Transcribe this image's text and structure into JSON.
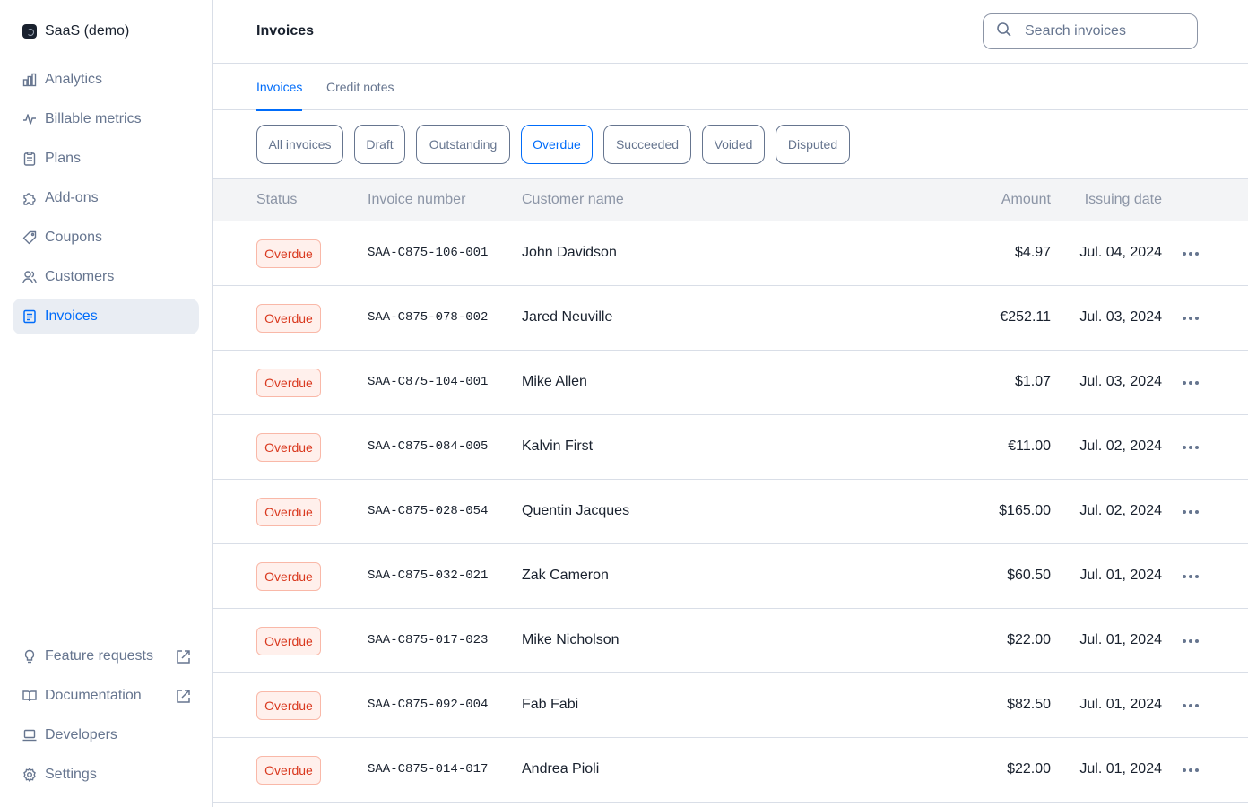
{
  "sidebar": {
    "org_name": "SaaS (demo)",
    "nav": [
      {
        "label": "Analytics",
        "icon": "chart-bar-icon"
      },
      {
        "label": "Billable metrics",
        "icon": "pulse-icon"
      },
      {
        "label": "Plans",
        "icon": "clipboard-icon"
      },
      {
        "label": "Add-ons",
        "icon": "puzzle-icon"
      },
      {
        "label": "Coupons",
        "icon": "tag-icon"
      },
      {
        "label": "Customers",
        "icon": "users-icon"
      },
      {
        "label": "Invoices",
        "icon": "document-icon",
        "active": true
      }
    ],
    "bottom": [
      {
        "label": "Feature requests",
        "icon": "lightbulb-icon",
        "external": true
      },
      {
        "label": "Documentation",
        "icon": "book-icon",
        "external": true
      },
      {
        "label": "Developers",
        "icon": "laptop-icon"
      },
      {
        "label": "Settings",
        "icon": "gear-icon"
      }
    ]
  },
  "header": {
    "title": "Invoices",
    "search_placeholder": "Search invoices"
  },
  "tabs": [
    {
      "label": "Invoices",
      "active": true
    },
    {
      "label": "Credit notes",
      "active": false
    }
  ],
  "filters": [
    {
      "label": "All invoices",
      "active": false
    },
    {
      "label": "Draft",
      "active": false
    },
    {
      "label": "Outstanding",
      "active": false
    },
    {
      "label": "Overdue",
      "active": true
    },
    {
      "label": "Succeeded",
      "active": false
    },
    {
      "label": "Voided",
      "active": false
    },
    {
      "label": "Disputed",
      "active": false
    }
  ],
  "table": {
    "columns": {
      "status": "Status",
      "invoice_number": "Invoice number",
      "customer_name": "Customer name",
      "amount": "Amount",
      "issuing_date": "Issuing date"
    },
    "rows": [
      {
        "status": "Overdue",
        "invoice_number": "SAA-C875-106-001",
        "customer": "John Davidson",
        "amount": "$4.97",
        "date": "Jul. 04, 2024"
      },
      {
        "status": "Overdue",
        "invoice_number": "SAA-C875-078-002",
        "customer": "Jared Neuville",
        "amount": "€252.11",
        "date": "Jul. 03, 2024"
      },
      {
        "status": "Overdue",
        "invoice_number": "SAA-C875-104-001",
        "customer": "Mike Allen",
        "amount": "$1.07",
        "date": "Jul. 03, 2024"
      },
      {
        "status": "Overdue",
        "invoice_number": "SAA-C875-084-005",
        "customer": "Kalvin First",
        "amount": "€11.00",
        "date": "Jul. 02, 2024"
      },
      {
        "status": "Overdue",
        "invoice_number": "SAA-C875-028-054",
        "customer": "Quentin Jacques",
        "amount": "$165.00",
        "date": "Jul. 02, 2024"
      },
      {
        "status": "Overdue",
        "invoice_number": "SAA-C875-032-021",
        "customer": "Zak Cameron",
        "amount": "$60.50",
        "date": "Jul. 01, 2024"
      },
      {
        "status": "Overdue",
        "invoice_number": "SAA-C875-017-023",
        "customer": "Mike Nicholson",
        "amount": "$22.00",
        "date": "Jul. 01, 2024"
      },
      {
        "status": "Overdue",
        "invoice_number": "SAA-C875-092-004",
        "customer": "Fab Fabi",
        "amount": "$82.50",
        "date": "Jul. 01, 2024"
      },
      {
        "status": "Overdue",
        "invoice_number": "SAA-C875-014-017",
        "customer": "Andrea Pioli",
        "amount": "$22.00",
        "date": "Jul. 01, 2024"
      }
    ]
  },
  "colors": {
    "accent": "#006cfa",
    "overdue_text": "#d9381e",
    "overdue_bg": "#fff0ec",
    "muted": "#66758f"
  }
}
